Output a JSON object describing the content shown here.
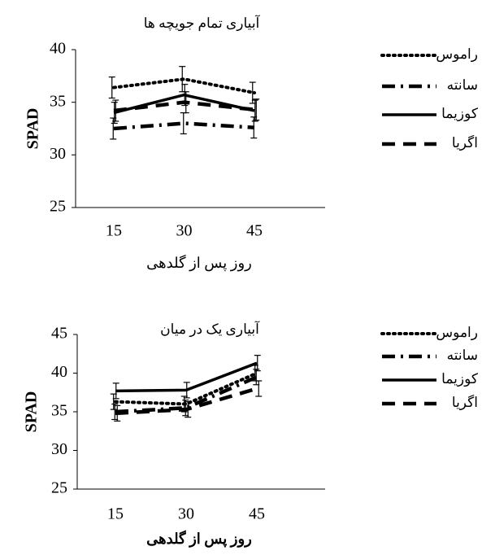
{
  "chart_data": [
    {
      "type": "line",
      "title": "آبیاری تمام جویچه ها",
      "y_label": "SPAD",
      "x_label": "روز پس از گلدهی",
      "categories": [
        "15",
        "30",
        "45"
      ],
      "ylim": [
        25,
        40
      ],
      "yticks": [
        25,
        30,
        35,
        40
      ],
      "series": [
        {
          "name": "راموس",
          "color": "#000000",
          "line_style": "dotted",
          "values": [
            36.4,
            37.2,
            35.9
          ],
          "errors": [
            1.0,
            1.2,
            1.0
          ]
        },
        {
          "name": "سانته",
          "color": "#000000",
          "line_style": "dashdot",
          "values": [
            32.5,
            33.0,
            32.6
          ],
          "errors": [
            1.0,
            1.0,
            1.0
          ]
        },
        {
          "name": "کوزیما",
          "color": "#000000",
          "line_style": "solid",
          "values": [
            34.0,
            35.7,
            34.2
          ],
          "errors": [
            1.0,
            1.0,
            1.0
          ]
        },
        {
          "name": "اگریا",
          "color": "#000000",
          "line_style": "dashed",
          "values": [
            34.2,
            35.0,
            34.3
          ],
          "errors": [
            1.0,
            1.0,
            1.0
          ]
        }
      ]
    },
    {
      "type": "line",
      "title": "آبیاری یک در میان",
      "y_label": "SPAD",
      "x_label": "روز پس از گلدهی",
      "categories": [
        "15",
        "30",
        "45"
      ],
      "ylim": [
        25,
        45
      ],
      "yticks": [
        25,
        30,
        35,
        40,
        45
      ],
      "series": [
        {
          "name": "راموس",
          "color": "#000000",
          "line_style": "dotted",
          "values": [
            36.3,
            36.0,
            40.0
          ],
          "errors": [
            1.0,
            1.0,
            1.0
          ]
        },
        {
          "name": "سانته",
          "color": "#000000",
          "line_style": "dashdot",
          "values": [
            35.0,
            35.5,
            39.5
          ],
          "errors": [
            1.0,
            1.0,
            1.0
          ]
        },
        {
          "name": "کوزیما",
          "color": "#000000",
          "line_style": "solid",
          "values": [
            37.7,
            37.8,
            41.3
          ],
          "errors": [
            1.0,
            1.0,
            1.0
          ]
        },
        {
          "name": "اگریا",
          "color": "#000000",
          "line_style": "dashed",
          "values": [
            34.8,
            35.3,
            38.0
          ],
          "errors": [
            1.0,
            1.0,
            1.0
          ]
        }
      ]
    }
  ]
}
